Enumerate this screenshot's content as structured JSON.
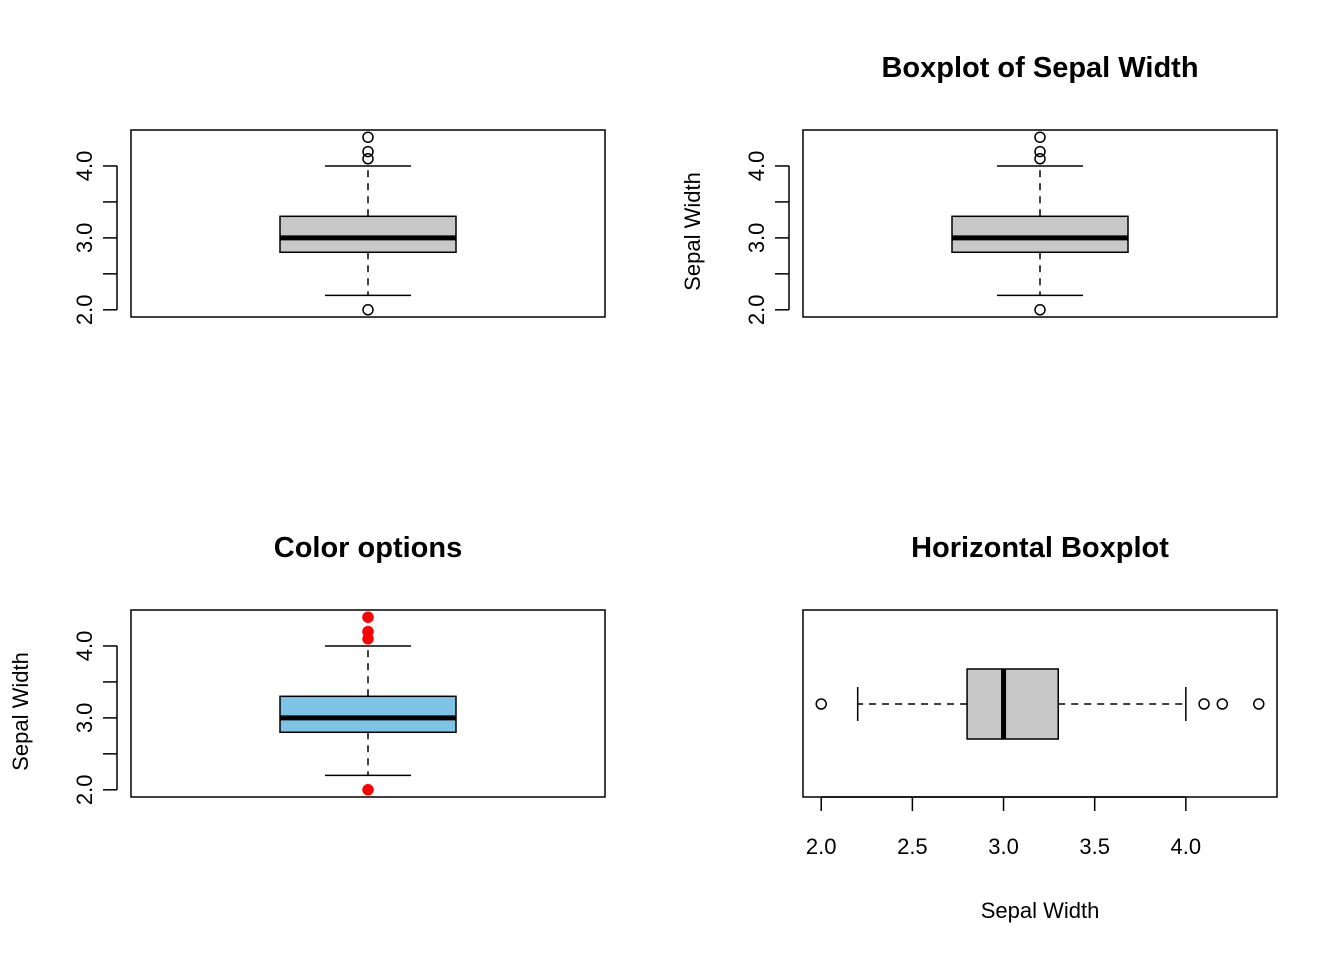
{
  "chart_data": [
    {
      "type": "boxplot",
      "orientation": "vertical",
      "title": "",
      "xlabel": "",
      "ylabel": "",
      "ylim": [
        1.9,
        4.5
      ],
      "ticks": [
        2.0,
        2.5,
        3.0,
        3.5,
        4.0
      ],
      "tick_labels": [
        "2.0",
        "",
        "3.0",
        "",
        "4.0"
      ],
      "stats": {
        "lower_whisker": 2.2,
        "q1": 2.8,
        "median": 3.0,
        "q3": 3.3,
        "upper_whisker": 4.0
      },
      "outliers": [
        4.4,
        4.1,
        4.2,
        2.0
      ],
      "box_color": "#c8c8c8",
      "outlier_color": "#000000",
      "outlier_filled": false
    },
    {
      "type": "boxplot",
      "orientation": "vertical",
      "title": "Boxplot of Sepal Width",
      "xlabel": "",
      "ylabel": "Sepal Width",
      "ylim": [
        1.9,
        4.5
      ],
      "ticks": [
        2.0,
        2.5,
        3.0,
        3.5,
        4.0
      ],
      "tick_labels": [
        "2.0",
        "",
        "3.0",
        "",
        "4.0"
      ],
      "stats": {
        "lower_whisker": 2.2,
        "q1": 2.8,
        "median": 3.0,
        "q3": 3.3,
        "upper_whisker": 4.0
      },
      "outliers": [
        4.4,
        4.1,
        4.2,
        2.0
      ],
      "box_color": "#c8c8c8",
      "outlier_color": "#000000",
      "outlier_filled": false
    },
    {
      "type": "boxplot",
      "orientation": "vertical",
      "title": "Color options",
      "xlabel": "",
      "ylabel": "Sepal Width",
      "ylim": [
        1.9,
        4.5
      ],
      "ticks": [
        2.0,
        2.5,
        3.0,
        3.5,
        4.0
      ],
      "tick_labels": [
        "2.0",
        "",
        "3.0",
        "",
        "4.0"
      ],
      "stats": {
        "lower_whisker": 2.2,
        "q1": 2.8,
        "median": 3.0,
        "q3": 3.3,
        "upper_whisker": 4.0
      },
      "outliers": [
        4.4,
        4.1,
        4.2,
        2.0
      ],
      "box_color": "#7ec4e6",
      "outlier_color": "#ff0000",
      "outlier_filled": true
    },
    {
      "type": "boxplot",
      "orientation": "horizontal",
      "title": "Horizontal Boxplot",
      "xlabel": "Sepal Width",
      "ylabel": "",
      "xlim": [
        1.9,
        4.5
      ],
      "ticks": [
        2.0,
        2.5,
        3.0,
        3.5,
        4.0
      ],
      "tick_labels": [
        "2.0",
        "2.5",
        "3.0",
        "3.5",
        "4.0"
      ],
      "stats": {
        "lower_whisker": 2.2,
        "q1": 2.8,
        "median": 3.0,
        "q3": 3.3,
        "upper_whisker": 4.0
      },
      "outliers": [
        4.4,
        4.1,
        4.2,
        2.0
      ],
      "box_color": "#c8c8c8",
      "outlier_color": "#000000",
      "outlier_filled": false
    }
  ]
}
